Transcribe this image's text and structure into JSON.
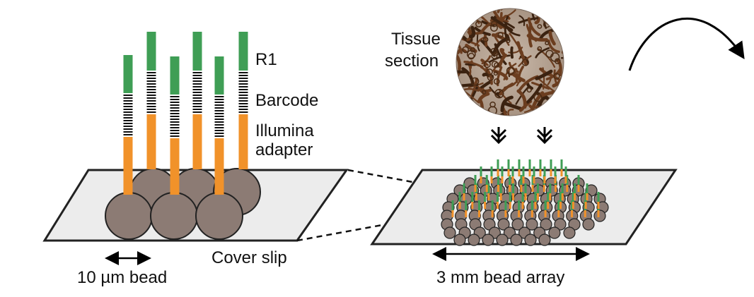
{
  "labels": {
    "r1": "R1",
    "barcode": "Barcode",
    "adapter_line1": "Illumina",
    "adapter_line2": "adapter",
    "tissue_line1": "Tissue",
    "tissue_line2": "section",
    "cover_slip": "Cover slip",
    "bead_size": "10 µm bead",
    "array_size": "3 mm bead array"
  },
  "colors": {
    "r1_segment": "#3f9e55",
    "adapter_segment": "#f1922a",
    "bead": "#8c7b74",
    "slide": "#ececec",
    "tissue_stain": "#6b3d1f"
  },
  "icons": {
    "flow_arrow": "curved-arrow-icon",
    "down_arrows": "double-chevron-down-icon",
    "scale_arrow": "double-headed-arrow-icon"
  }
}
